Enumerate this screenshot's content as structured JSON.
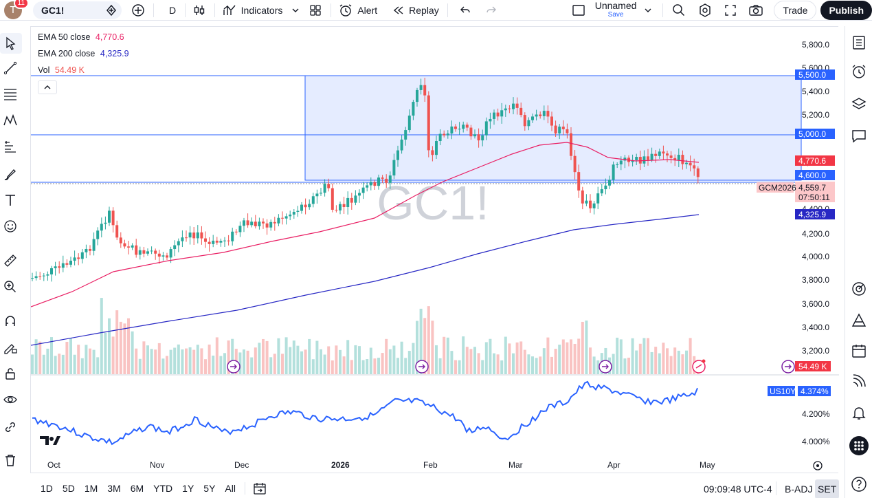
{
  "user": {
    "avatar_letter": "T",
    "notifications": "11"
  },
  "symbol": "GC1!",
  "interval": "D",
  "toolbar": {
    "indicators": "Indicators",
    "alert": "Alert",
    "replay": "Replay",
    "layout_name": "Unnamed",
    "layout_status": "Save",
    "trade": "Trade",
    "publish": "Publish"
  },
  "legend": {
    "ema50_label": "EMA 50 close",
    "ema50_value": "4,770.6",
    "ema200_label": "EMA 200 close",
    "ema200_value": "4,325.9",
    "vol_label": "Vol",
    "vol_value": "54.49 K"
  },
  "colors": {
    "up": "#26a69a",
    "down": "#ef5350",
    "ema50": "#e91e63",
    "ema200": "#2727c4",
    "zone": "#2962ff",
    "us10y": "#2962ff"
  },
  "price_axis": [
    "5,800.0",
    "5,600.0",
    "5,400.0",
    "5,200.0",
    "4,800.0",
    "4,400.0",
    "4,200.0",
    "4,000.0",
    "3,800.0",
    "3,600.0",
    "3,400.0",
    "3,200.0"
  ],
  "price_labels": {
    "zone_top": "5,500.0",
    "level_5000": "5,000.0",
    "ema50": "4,770.6",
    "zone_bottom": "4,600.0",
    "last": "4,559.7",
    "countdown": "07:50:11",
    "ema200": "4,325.9",
    "volume": "54.49 K",
    "contract": "GCM2026"
  },
  "us10y": {
    "symbol": "US10Y",
    "value": "4.374%",
    "axis": [
      "4.200%",
      "4.000%"
    ]
  },
  "time_axis": [
    "Oct",
    "Nov",
    "Dec",
    "2026",
    "Feb",
    "Mar",
    "Apr",
    "May"
  ],
  "watermark": "GC1!",
  "bottom": {
    "ranges": [
      "1D",
      "5D",
      "1M",
      "3M",
      "6M",
      "YTD",
      "1Y",
      "5Y",
      "All"
    ],
    "clock": "09:09:48 UTC-4",
    "badj": "B-ADJ",
    "set": "SET"
  }
}
